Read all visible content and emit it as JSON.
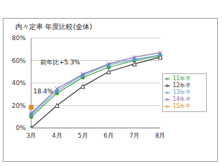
{
  "chart_data": {
    "type": "line",
    "title": "内々定率 年度比較(全体)",
    "categories": [
      "3月",
      "4月",
      "5月",
      "6月",
      "7月",
      "8月"
    ],
    "series": [
      {
        "name": "11年卒",
        "color": "#3a9a3a",
        "marker": "circle",
        "values": [
          10,
          31,
          45,
          54,
          60,
          64
        ]
      },
      {
        "name": "12年卒",
        "color": "#333333",
        "marker": "triangle",
        "values": [
          0,
          20,
          37,
          50,
          57,
          63
        ]
      },
      {
        "name": "13年卒",
        "color": "#5aa0d0",
        "marker": "circle",
        "values": [
          12,
          33,
          47,
          56,
          61,
          65
        ]
      },
      {
        "name": "14年卒",
        "color": "#8a6fa8",
        "marker": "cross",
        "values": [
          13.1,
          35,
          48,
          57,
          63,
          67
        ]
      },
      {
        "name": "15年卒",
        "color": "#e08a2a",
        "marker": "square",
        "values": [
          18.4,
          null,
          null,
          null,
          null,
          null
        ]
      }
    ],
    "ylim": [
      0,
      80
    ],
    "yticks": [
      {
        "value": 0,
        "label": "0%"
      },
      {
        "value": 20,
        "label": "20%"
      },
      {
        "value": 40,
        "label": "40%"
      },
      {
        "value": 60,
        "label": "60%"
      },
      {
        "value": 80,
        "label": "80%"
      }
    ],
    "grid": true,
    "legend": "right",
    "annotations": [
      "前年比+5.3%",
      "18.4%"
    ]
  }
}
